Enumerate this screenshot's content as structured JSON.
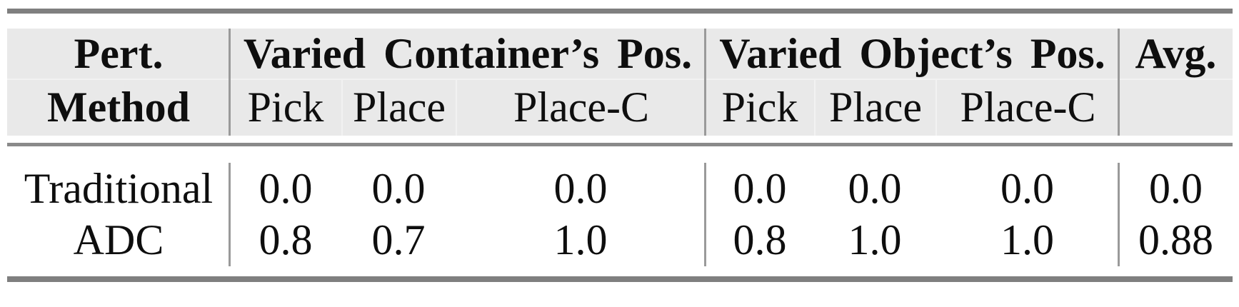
{
  "table": {
    "header": {
      "col_method": {
        "line1": "Pert.",
        "line2": "Method"
      },
      "group1": {
        "title": "Varied Container’s Pos.",
        "subcols": [
          "Pick",
          "Place",
          "Place-C"
        ]
      },
      "group2": {
        "title": "Varied Object’s Pos.",
        "subcols": [
          "Pick",
          "Place",
          "Place-C"
        ]
      },
      "avg": "Avg."
    },
    "rows": [
      {
        "method": "Traditional",
        "g1": [
          "0.0",
          "0.0",
          "0.0"
        ],
        "g2": [
          "0.0",
          "0.0",
          "0.0"
        ],
        "avg": "0.0"
      },
      {
        "method": "ADC",
        "g1": [
          "0.8",
          "0.7",
          "1.0"
        ],
        "g2": [
          "0.8",
          "1.0",
          "1.0"
        ],
        "avg": "0.88"
      }
    ]
  },
  "colors": {
    "header_bg": "#e9e9e9",
    "rule_heavy": "#7f7f7f",
    "rule_mid": "#8a8a8a",
    "vline": "#9a9a9a",
    "hairline": "#f2f2f2",
    "text": "#0e0e0e"
  },
  "chart_data": {
    "type": "table",
    "title": "",
    "column_groups": [
      "",
      "Varied Container's Pos.",
      "Varied Object's Pos.",
      ""
    ],
    "columns": [
      "Pert. Method",
      "Pick",
      "Place",
      "Place-C",
      "Pick",
      "Place",
      "Place-C",
      "Avg."
    ],
    "rows": [
      [
        "Traditional",
        0.0,
        0.0,
        0.0,
        0.0,
        0.0,
        0.0,
        0.0
      ],
      [
        "ADC",
        0.8,
        0.7,
        1.0,
        0.8,
        1.0,
        1.0,
        0.88
      ]
    ]
  }
}
